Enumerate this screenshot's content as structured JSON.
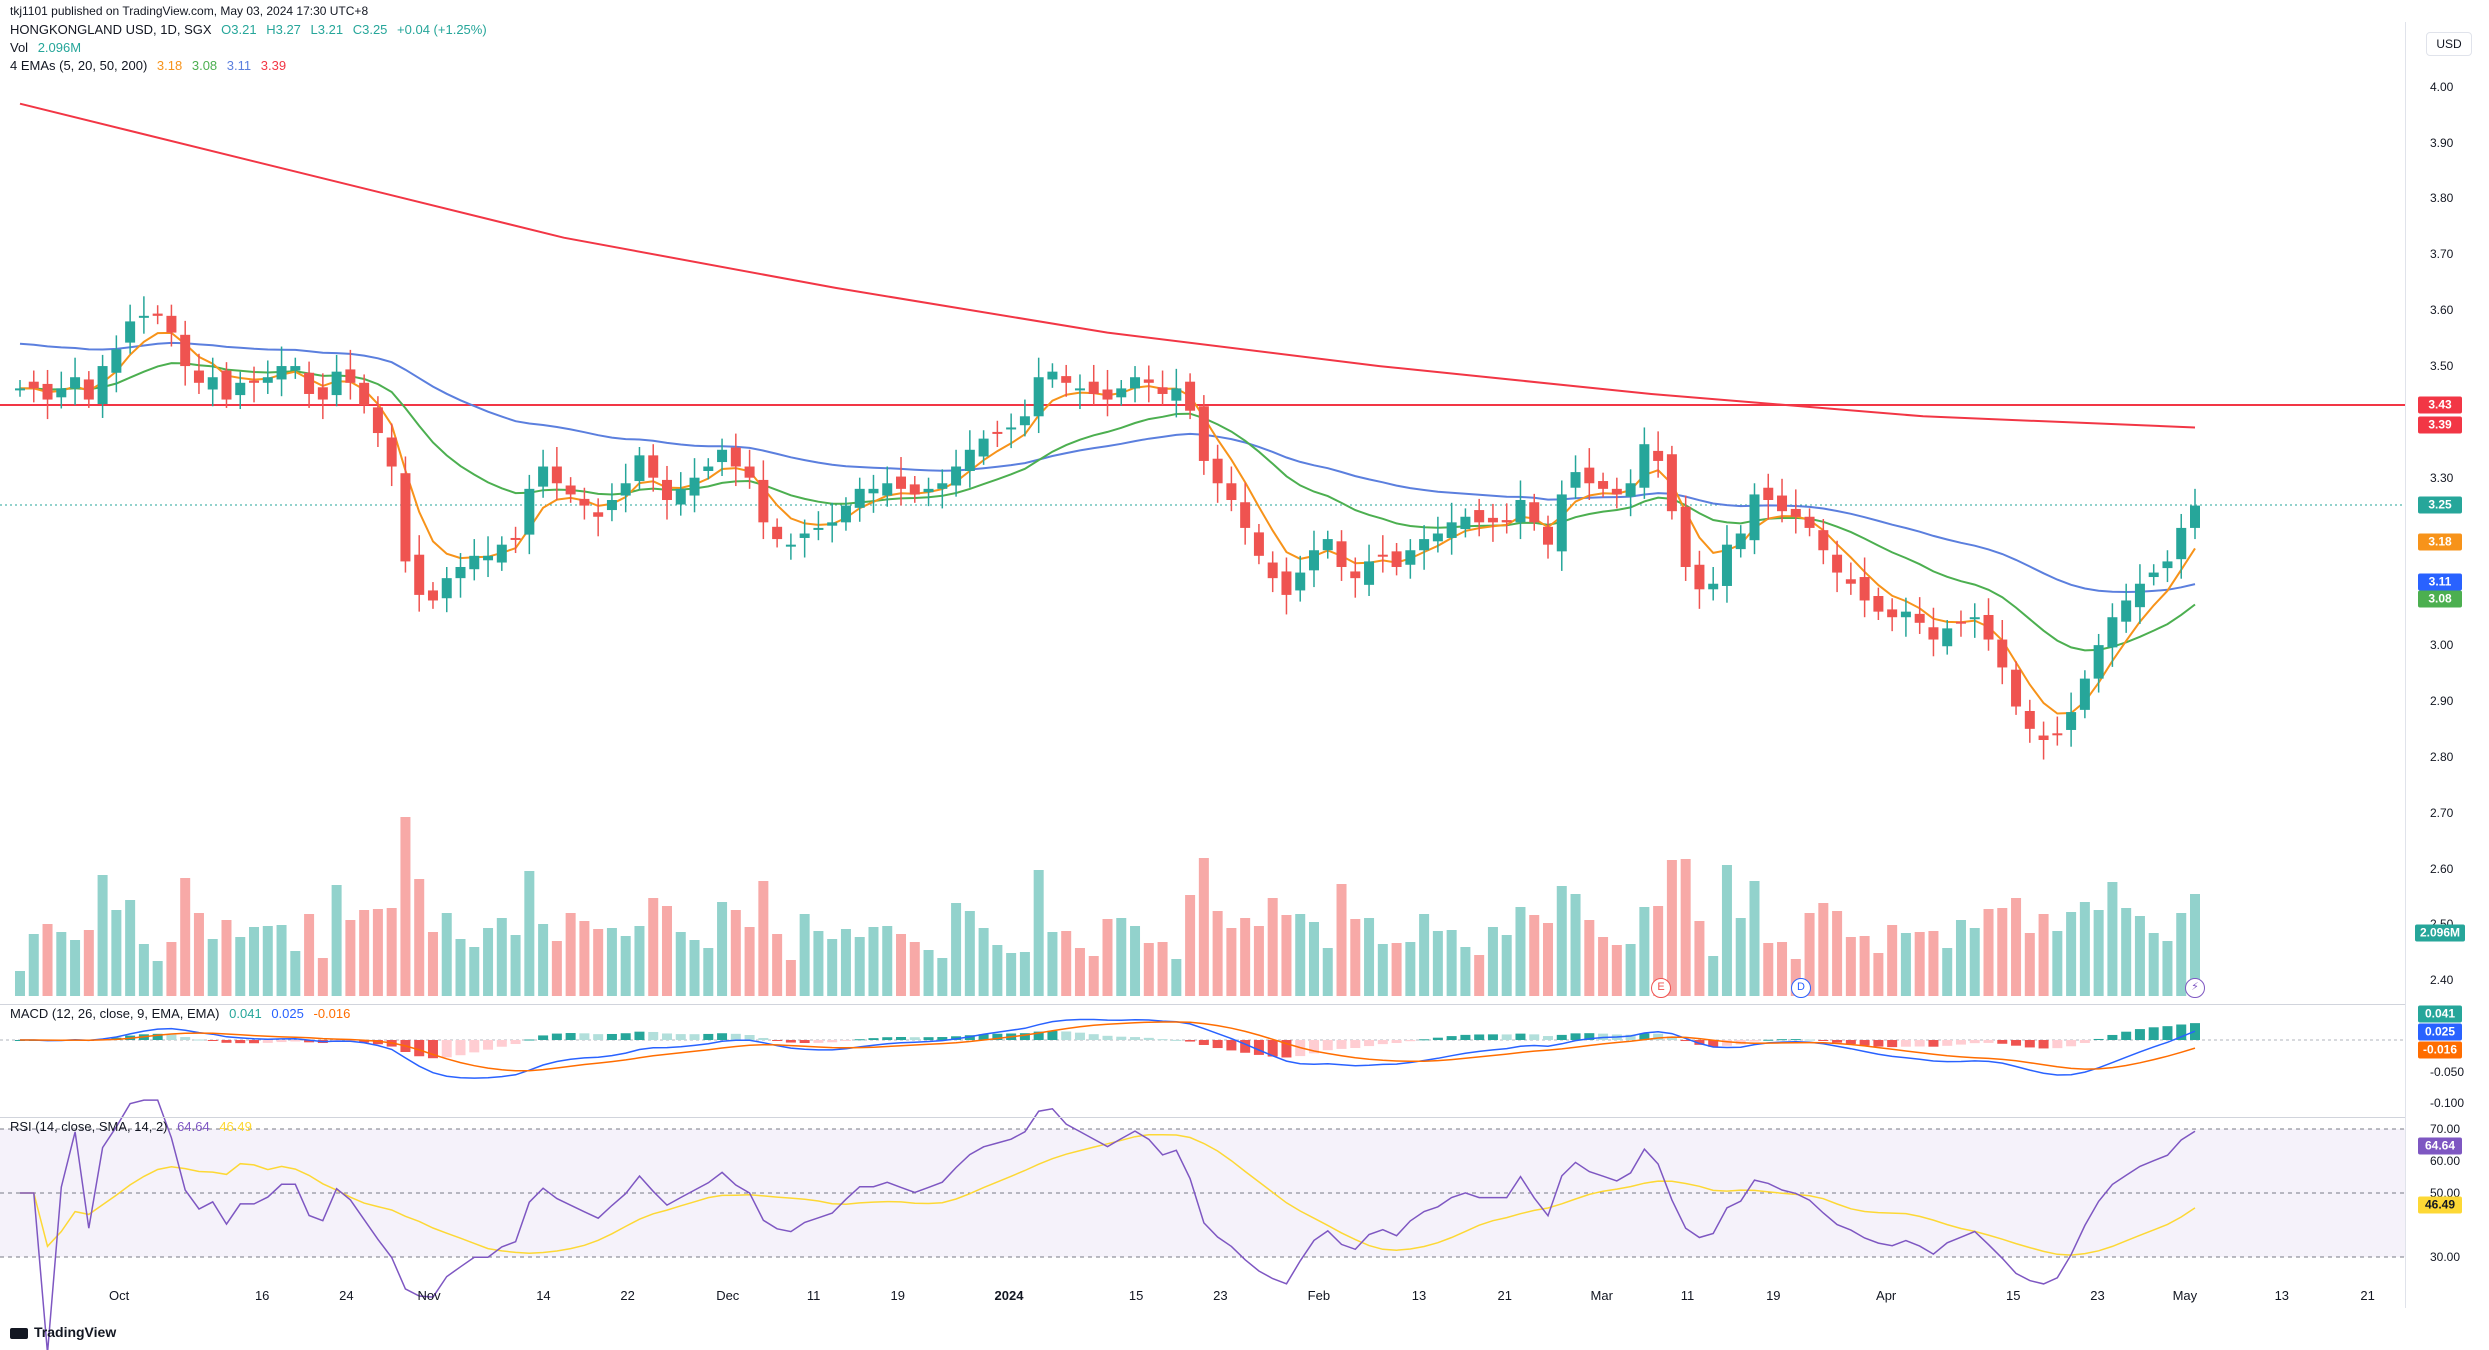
{
  "header": {
    "published": "tkj1101 published on TradingView.com, May 03, 2024 17:30 UTC+8",
    "symbol": "HONGKONGLAND USD, 1D, SGX",
    "open": "O3.21",
    "high": "H3.27",
    "low": "L3.21",
    "close": "C3.25",
    "change": "+0.04 (+1.25%)",
    "vol_label": "Vol",
    "vol_value": "2.096M",
    "ema_label": "4 EMAs (5, 20, 50, 200)",
    "ema5": "3.18",
    "ema20": "3.08",
    "ema50": "3.11",
    "ema200": "3.39",
    "macd_label": "MACD (12, 26, close, 9, EMA, EMA)",
    "macd_hist": "0.041",
    "macd_line": "0.025",
    "macd_signal": "-0.016",
    "rsi_label": "RSI (14, close, SMA, 14, 2)",
    "rsi_value": "64.64",
    "rsi_ma": "46.49"
  },
  "currency": "USD",
  "price_axis": [
    "4.00",
    "3.90",
    "3.80",
    "3.70",
    "3.60",
    "3.50",
    "3.30",
    "3.00",
    "2.90",
    "2.80",
    "2.70",
    "2.60",
    "2.50",
    "2.40"
  ],
  "macd_axis": [
    "-0.050",
    "-0.100"
  ],
  "rsi_axis": [
    "70.00",
    "60.00",
    "50.00",
    "30.00"
  ],
  "tags": {
    "resistance": "3.43",
    "ema200": "3.39",
    "last": "3.25",
    "ema5": "3.18",
    "ema50": "3.11",
    "ema20": "3.08",
    "vol": "2.096M",
    "macd_hist": "0.041",
    "macd_line": "0.025",
    "macd_signal": "-0.016",
    "rsi": "64.64",
    "rsi_ma": "46.49"
  },
  "x_labels": [
    {
      "t": "Oct",
      "x": 75
    },
    {
      "t": "16",
      "x": 165
    },
    {
      "t": "24",
      "x": 218
    },
    {
      "t": "Nov",
      "x": 270
    },
    {
      "t": "14",
      "x": 342
    },
    {
      "t": "22",
      "x": 395
    },
    {
      "t": "Dec",
      "x": 458
    },
    {
      "t": "11",
      "x": 512
    },
    {
      "t": "19",
      "x": 565
    },
    {
      "t": "2024",
      "x": 635,
      "bold": true
    },
    {
      "t": "15",
      "x": 715
    },
    {
      "t": "23",
      "x": 768
    },
    {
      "t": "Feb",
      "x": 830
    },
    {
      "t": "13",
      "x": 893
    },
    {
      "t": "21",
      "x": 947
    },
    {
      "t": "Mar",
      "x": 1008
    },
    {
      "t": "11",
      "x": 1062
    },
    {
      "t": "19",
      "x": 1116
    },
    {
      "t": "Apr",
      "x": 1187
    },
    {
      "t": "15",
      "x": 1267
    },
    {
      "t": "23",
      "x": 1320
    },
    {
      "t": "May",
      "x": 1375
    },
    {
      "t": "13",
      "x": 1436
    },
    {
      "t": "21",
      "x": 1490
    }
  ],
  "events": {
    "earnings": "E",
    "dividend": "D",
    "split": "⚡"
  },
  "brand": "TradingView",
  "colors": {
    "up": "#26a69a",
    "down": "#ef5350",
    "ema5": "#f7931a",
    "ema20": "#4caf50",
    "ema50": "#5b7fde",
    "ema200": "#f23645",
    "resistance": "#f23645",
    "macd": "#2962ff",
    "signal": "#ff6d00",
    "rsi": "#7e57c2",
    "rsima": "#fdd835"
  },
  "chart_data": {
    "type": "candlestick",
    "title": "HONGKONGLAND USD, 1D, SGX",
    "ylim": [
      2.35,
      4.08
    ],
    "resistance_level": 3.43,
    "close_series": [
      3.46,
      3.46,
      3.44,
      3.46,
      3.48,
      3.44,
      3.5,
      3.53,
      3.58,
      3.59,
      3.59,
      3.56,
      3.5,
      3.47,
      3.48,
      3.44,
      3.47,
      3.47,
      3.48,
      3.5,
      3.5,
      3.45,
      3.44,
      3.49,
      3.47,
      3.43,
      3.38,
      3.32,
      3.15,
      3.09,
      3.08,
      3.12,
      3.14,
      3.16,
      3.16,
      3.18,
      3.19,
      3.28,
      3.32,
      3.29,
      3.27,
      3.25,
      3.23,
      3.26,
      3.29,
      3.34,
      3.3,
      3.26,
      3.28,
      3.3,
      3.32,
      3.35,
      3.32,
      3.3,
      3.22,
      3.19,
      3.18,
      3.2,
      3.21,
      3.22,
      3.25,
      3.28,
      3.28,
      3.29,
      3.28,
      3.27,
      3.28,
      3.29,
      3.32,
      3.35,
      3.37,
      3.38,
      3.39,
      3.41,
      3.48,
      3.49,
      3.47,
      3.46,
      3.45,
      3.44,
      3.46,
      3.48,
      3.47,
      3.45,
      3.46,
      3.42,
      3.33,
      3.29,
      3.26,
      3.21,
      3.16,
      3.12,
      3.09,
      3.13,
      3.17,
      3.19,
      3.14,
      3.12,
      3.15,
      3.16,
      3.14,
      3.17,
      3.19,
      3.2,
      3.22,
      3.23,
      3.22,
      3.22,
      3.22,
      3.26,
      3.22,
      3.18,
      3.27,
      3.31,
      3.29,
      3.28,
      3.27,
      3.29,
      3.36,
      3.33,
      3.24,
      3.14,
      3.1,
      3.11,
      3.18,
      3.2,
      3.27,
      3.26,
      3.24,
      3.23,
      3.21,
      3.17,
      3.13,
      3.11,
      3.08,
      3.06,
      3.05,
      3.06,
      3.04,
      3.01,
      3.03,
      3.04,
      3.05,
      3.01,
      2.96,
      2.89,
      2.85,
      2.83,
      2.84,
      2.88,
      2.94,
      3.0,
      3.05,
      3.08,
      3.11,
      3.13,
      3.15,
      3.21,
      3.25
    ],
    "ema200": [
      3.97,
      3.85,
      3.73,
      3.64,
      3.56,
      3.5,
      3.45,
      3.41,
      3.39
    ],
    "volume_label": "Vol 2.096M",
    "macd": {
      "macd": 0.025,
      "signal": -0.016,
      "histogram": 0.041
    },
    "rsi": {
      "value": 64.64,
      "ma": 46.49,
      "levels": [
        70,
        50,
        30
      ]
    }
  }
}
